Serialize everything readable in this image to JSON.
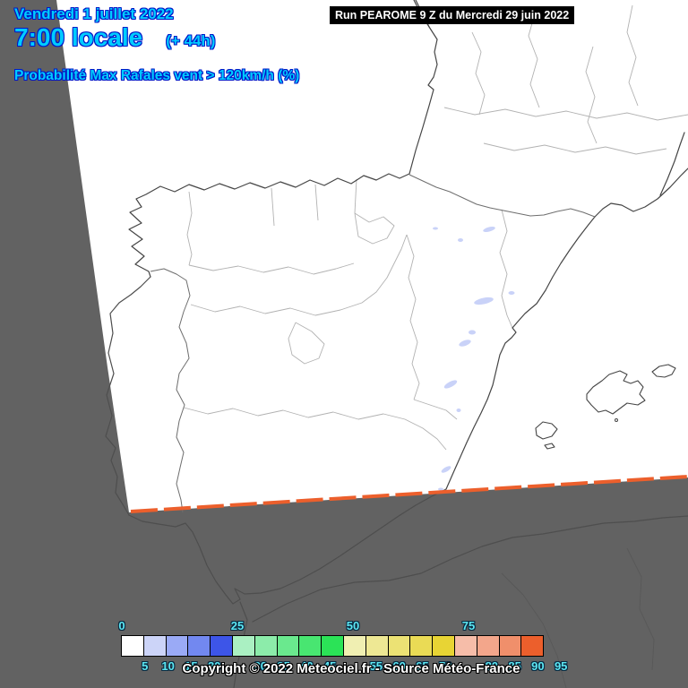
{
  "header": {
    "date_line": "Vendredi 1 juillet 2022",
    "time_value": "7:00 locale",
    "forecast_offset": "(+ 44h)",
    "parameter_line": "Probabilité Max Rafales vent > 120km/h (%)",
    "run_info": "Run PEAROME 9 Z du Mercredi 29 juin 2022",
    "text_color": "#00ccff",
    "outline_color": "#0018c8"
  },
  "map": {
    "region": "Iberian Peninsula and Western Europe",
    "model_domain_fill": "#ffffff",
    "outside_domain_fill": "#626262",
    "domain_edge_color": "#ec5f2c",
    "low_probability_patch_color": "#c9d2f8"
  },
  "legend": {
    "unit": "%",
    "values": [
      0,
      5,
      10,
      15,
      20,
      25,
      30,
      35,
      40,
      45,
      50,
      55,
      60,
      65,
      70,
      75,
      80,
      85,
      90,
      95
    ],
    "colors": [
      "#ffffff",
      "#ccd4f8",
      "#9aaaf6",
      "#7288f0",
      "#3d55e8",
      "#aaf0c2",
      "#8cecaa",
      "#6ae98e",
      "#48e671",
      "#2be357",
      "#f0efb2",
      "#eee894",
      "#ece274",
      "#eadb55",
      "#e8d434",
      "#f6bda9",
      "#f3a68b",
      "#f08f6b",
      "#ec5f2c"
    ],
    "top_labels": [
      "0",
      "25",
      "50",
      "75"
    ],
    "bottom_labels": [
      "5",
      "10",
      "15",
      "20",
      "30",
      "35",
      "40",
      "45",
      "55",
      "60",
      "65",
      "70",
      "80",
      "85",
      "90",
      "95"
    ]
  },
  "footer": {
    "copyright": "Copyright © 2022 Meteociel.fr - Source Météo-France"
  }
}
